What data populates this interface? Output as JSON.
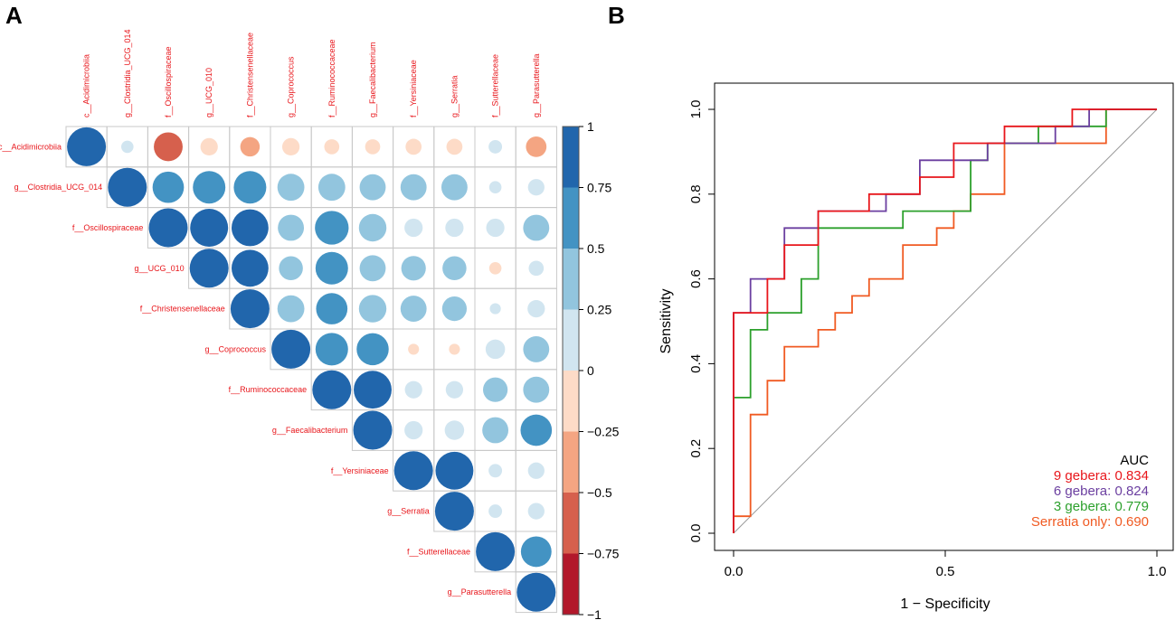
{
  "panels": {
    "a_label": "A",
    "b_label": "B"
  },
  "chart_data": [
    {
      "type": "heatmap",
      "subtype": "correlation-circle-matrix-upper",
      "title": "",
      "labels": [
        "c__Acidimicrobiia",
        "g__Clostridia_UCG_014",
        "f__Oscillospiraceae",
        "g__UCG_010",
        "f__Christensenellaceae",
        "g__Coprococcus",
        "f__Ruminococcaceae",
        "g__Faecalibacterium",
        "f__Yersiniaceae",
        "g__Serratia",
        "f__Sutterellaceae",
        "g__Parasutterella"
      ],
      "matrix": [
        [
          1,
          0.1,
          -0.55,
          -0.2,
          -0.25,
          -0.2,
          -0.15,
          -0.15,
          -0.17,
          -0.17,
          0.12,
          -0.28
        ],
        [
          null,
          1,
          0.65,
          0.7,
          0.7,
          0.48,
          0.48,
          0.45,
          0.45,
          0.45,
          0.1,
          0.18
        ],
        [
          null,
          null,
          1,
          0.95,
          0.9,
          0.45,
          0.75,
          0.5,
          0.22,
          0.22,
          0.22,
          0.45
        ],
        [
          null,
          null,
          null,
          1,
          0.9,
          0.38,
          0.7,
          0.45,
          0.4,
          0.38,
          -0.1,
          0.15
        ],
        [
          null,
          null,
          null,
          null,
          1,
          0.48,
          0.65,
          0.5,
          0.45,
          0.4,
          0.08,
          0.2
        ],
        [
          null,
          null,
          null,
          null,
          null,
          1,
          0.7,
          0.68,
          -0.08,
          -0.08,
          0.25,
          0.45
        ],
        [
          null,
          null,
          null,
          null,
          null,
          null,
          1,
          0.95,
          0.2,
          0.2,
          0.4,
          0.45
        ],
        [
          null,
          null,
          null,
          null,
          null,
          null,
          null,
          1,
          0.22,
          0.25,
          0.45,
          0.65
        ],
        [
          null,
          null,
          null,
          null,
          null,
          null,
          null,
          null,
          1,
          0.95,
          0.12,
          0.18
        ],
        [
          null,
          null,
          null,
          null,
          null,
          null,
          null,
          null,
          null,
          1,
          0.12,
          0.18
        ],
        [
          null,
          null,
          null,
          null,
          null,
          null,
          null,
          null,
          null,
          null,
          1,
          0.62
        ],
        [
          null,
          null,
          null,
          null,
          null,
          null,
          null,
          null,
          null,
          null,
          null,
          1
        ]
      ],
      "colorbar": {
        "ticks": [
          "1",
          "0.75",
          "0.5",
          "0.25",
          "0",
          "−0.25",
          "−0.5",
          "−0.75",
          "−1"
        ],
        "colors": [
          "#2166ac",
          "#4393c3",
          "#92c5de",
          "#d1e5f0",
          "#fddbc7",
          "#f4a582",
          "#d6604d",
          "#b2182b"
        ]
      },
      "colors": {
        "label": "#e8161b",
        "grid": "#c8c8c8"
      }
    },
    {
      "type": "line",
      "subtype": "roc-step",
      "title": "",
      "xlabel": "1 − Specificity",
      "ylabel": "Sensitivity",
      "xlim": [
        0,
        1
      ],
      "ylim": [
        0,
        1
      ],
      "xticks": [
        "0.0",
        "0.5",
        "1.0"
      ],
      "yticks": [
        "0.0",
        "0.2",
        "0.4",
        "0.6",
        "0.8",
        "1.0"
      ],
      "legend_title": "AUC",
      "series": [
        {
          "name": "9 gebera: 0.834",
          "color": "#e8161b",
          "points": [
            [
              0,
              0
            ],
            [
              0,
              0.52
            ],
            [
              0.08,
              0.52
            ],
            [
              0.08,
              0.6
            ],
            [
              0.12,
              0.6
            ],
            [
              0.12,
              0.68
            ],
            [
              0.2,
              0.68
            ],
            [
              0.2,
              0.76
            ],
            [
              0.32,
              0.76
            ],
            [
              0.32,
              0.8
            ],
            [
              0.44,
              0.8
            ],
            [
              0.44,
              0.84
            ],
            [
              0.52,
              0.84
            ],
            [
              0.52,
              0.92
            ],
            [
              0.64,
              0.92
            ],
            [
              0.64,
              0.96
            ],
            [
              0.8,
              0.96
            ],
            [
              0.8,
              1
            ],
            [
              1,
              1
            ]
          ]
        },
        {
          "name": "6 gebera: 0.824",
          "color": "#6b3fa0",
          "points": [
            [
              0,
              0
            ],
            [
              0,
              0.32
            ],
            [
              0,
              0.52
            ],
            [
              0.04,
              0.52
            ],
            [
              0.04,
              0.6
            ],
            [
              0.12,
              0.6
            ],
            [
              0.12,
              0.72
            ],
            [
              0.2,
              0.72
            ],
            [
              0.2,
              0.76
            ],
            [
              0.36,
              0.76
            ],
            [
              0.36,
              0.8
            ],
            [
              0.44,
              0.8
            ],
            [
              0.44,
              0.88
            ],
            [
              0.6,
              0.88
            ],
            [
              0.6,
              0.92
            ],
            [
              0.76,
              0.92
            ],
            [
              0.76,
              0.96
            ],
            [
              0.84,
              0.96
            ],
            [
              0.84,
              1
            ],
            [
              1,
              1
            ]
          ]
        },
        {
          "name": "3 gebera: 0.779",
          "color": "#2ca02c",
          "points": [
            [
              0,
              0
            ],
            [
              0,
              0.04
            ],
            [
              0,
              0.32
            ],
            [
              0.04,
              0.32
            ],
            [
              0.04,
              0.48
            ],
            [
              0.08,
              0.48
            ],
            [
              0.08,
              0.52
            ],
            [
              0.16,
              0.52
            ],
            [
              0.16,
              0.6
            ],
            [
              0.2,
              0.6
            ],
            [
              0.2,
              0.72
            ],
            [
              0.4,
              0.72
            ],
            [
              0.4,
              0.76
            ],
            [
              0.56,
              0.76
            ],
            [
              0.56,
              0.88
            ],
            [
              0.6,
              0.88
            ],
            [
              0.6,
              0.92
            ],
            [
              0.72,
              0.92
            ],
            [
              0.72,
              0.96
            ],
            [
              0.88,
              0.96
            ],
            [
              0.88,
              1
            ],
            [
              1,
              1
            ]
          ]
        },
        {
          "name": "Serratia only: 0.690",
          "color": "#f05a22",
          "points": [
            [
              0,
              0
            ],
            [
              0,
              0.04
            ],
            [
              0.04,
              0.04
            ],
            [
              0.04,
              0.28
            ],
            [
              0.08,
              0.28
            ],
            [
              0.08,
              0.36
            ],
            [
              0.12,
              0.36
            ],
            [
              0.12,
              0.44
            ],
            [
              0.2,
              0.44
            ],
            [
              0.2,
              0.48
            ],
            [
              0.24,
              0.48
            ],
            [
              0.24,
              0.52
            ],
            [
              0.28,
              0.52
            ],
            [
              0.28,
              0.56
            ],
            [
              0.32,
              0.56
            ],
            [
              0.32,
              0.6
            ],
            [
              0.4,
              0.6
            ],
            [
              0.4,
              0.68
            ],
            [
              0.48,
              0.68
            ],
            [
              0.48,
              0.72
            ],
            [
              0.52,
              0.72
            ],
            [
              0.52,
              0.76
            ],
            [
              0.56,
              0.76
            ],
            [
              0.56,
              0.8
            ],
            [
              0.64,
              0.8
            ],
            [
              0.64,
              0.92
            ],
            [
              0.88,
              0.92
            ],
            [
              0.88,
              1
            ],
            [
              1,
              1
            ]
          ]
        }
      ]
    }
  ]
}
